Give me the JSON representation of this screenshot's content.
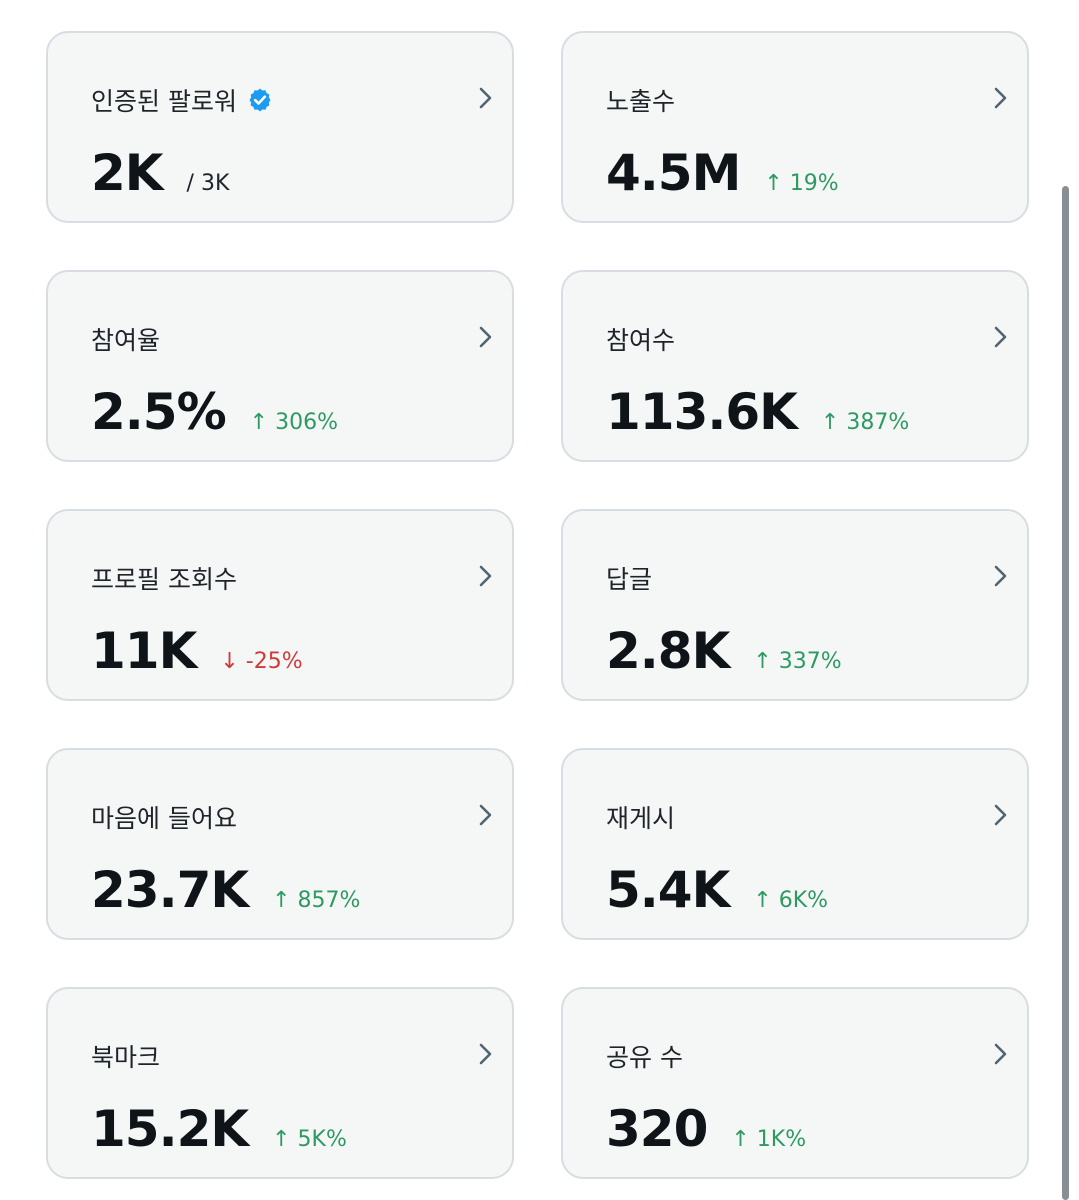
{
  "cards": [
    {
      "title": "인증된 팔로워",
      "value": "2K",
      "sub": "/ 3K",
      "delta": "",
      "verified": true
    },
    {
      "title": "노출수",
      "value": "4.5M",
      "sub": "",
      "delta": "↑ 19%",
      "trend": "up"
    },
    {
      "title": "참여율",
      "value": "2.5%",
      "sub": "",
      "delta": "↑ 306%",
      "trend": "up"
    },
    {
      "title": "참여수",
      "value": "113.6K",
      "sub": "",
      "delta": "↑ 387%",
      "trend": "up"
    },
    {
      "title": "프로필 조회수",
      "value": "11K",
      "sub": "",
      "delta": "↓ -25%",
      "trend": "down"
    },
    {
      "title": "답글",
      "value": "2.8K",
      "sub": "",
      "delta": "↑ 337%",
      "trend": "up"
    },
    {
      "title": "마음에 들어요",
      "value": "23.7K",
      "sub": "",
      "delta": "↑ 857%",
      "trend": "up"
    },
    {
      "title": "재게시",
      "value": "5.4K",
      "sub": "",
      "delta": "↑ 6K%",
      "trend": "up"
    },
    {
      "title": "북마크",
      "value": "15.2K",
      "sub": "",
      "delta": "↑ 5K%",
      "trend": "up"
    },
    {
      "title": "공유 수",
      "value": "320",
      "sub": "",
      "delta": "↑ 1K%",
      "trend": "up"
    }
  ],
  "colors": {
    "up": "#2e9a62",
    "down": "#d03a3a",
    "verified": "#1d9bf0",
    "chevron": "#536471"
  },
  "icons": {
    "chevron": "chevron-right-icon",
    "verified": "verified-badge-icon"
  }
}
